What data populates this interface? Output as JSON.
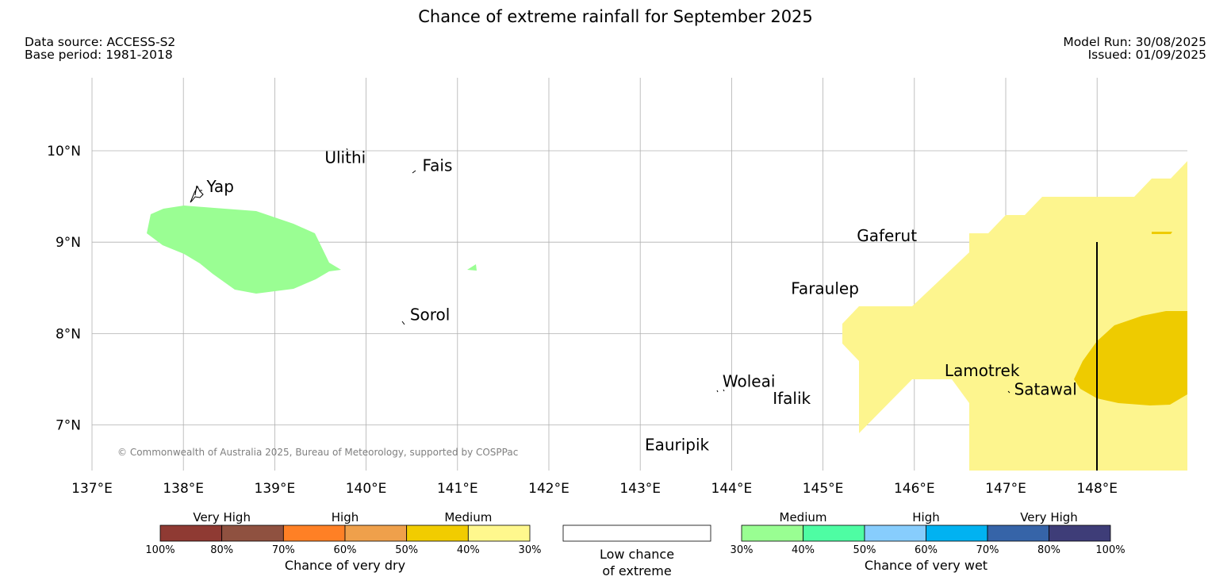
{
  "title": "Chance of extreme rainfall for September 2025",
  "data_source": "Data source: ACCESS-S2",
  "base_period": "Base period: 1981-2018",
  "model_run": "Model Run: 30/08/2025",
  "issued": "Issued: 01/09/2025",
  "copyright": "© Commonwealth of Australia 2025, Bureau of Meteorology, supported by COSPPac",
  "map": {
    "lon_ticks": [
      {
        "value": 137,
        "label": "137°E"
      },
      {
        "value": 138,
        "label": "138°E"
      },
      {
        "value": 139,
        "label": "139°E"
      },
      {
        "value": 140,
        "label": "140°E"
      },
      {
        "value": 141,
        "label": "141°E"
      },
      {
        "value": 142,
        "label": "142°E"
      },
      {
        "value": 143,
        "label": "143°E"
      },
      {
        "value": 144,
        "label": "144°E"
      },
      {
        "value": 145,
        "label": "145°E"
      },
      {
        "value": 146,
        "label": "146°E"
      },
      {
        "value": 147,
        "label": "147°E"
      },
      {
        "value": 148,
        "label": "148°E"
      }
    ],
    "lat_ticks": [
      {
        "value": 10,
        "label": "10°N"
      },
      {
        "value": 9,
        "label": "9°N"
      },
      {
        "value": 8,
        "label": "8°N"
      },
      {
        "value": 7,
        "label": "7°N"
      }
    ],
    "places": [
      {
        "name": "Yap",
        "lon": 138.15,
        "lat": 9.53
      },
      {
        "name": "Ulithi",
        "lon": 139.72,
        "lat": 10.03
      },
      {
        "name": "Fais",
        "lon": 140.52,
        "lat": 9.77
      },
      {
        "name": "Sorol",
        "lon": 140.41,
        "lat": 8.13
      },
      {
        "name": "Gaferut",
        "lon": 145.37,
        "lat": 9.0
      },
      {
        "name": "Faraulep",
        "lon": 144.65,
        "lat": 8.4
      },
      {
        "name": "Woleai",
        "lon": 143.9,
        "lat": 7.35
      },
      {
        "name": "Ifalik",
        "lon": 144.45,
        "lat": 7.25
      },
      {
        "name": "Lamotrek",
        "lon": 146.33,
        "lat": 7.5
      },
      {
        "name": "Satawal",
        "lon": 147.04,
        "lat": 7.35
      },
      {
        "name": "Eauripik",
        "lon": 143.05,
        "lat": 6.68
      }
    ],
    "colors": {
      "dry_40": "#fdf58e",
      "dry_50": "#eecb00",
      "wet_30": "#9afe93"
    }
  },
  "legend": {
    "dry": {
      "levels": [
        "Very High",
        "High",
        "Medium"
      ],
      "ticks": [
        "100%",
        "80%",
        "70%",
        "60%",
        "50%",
        "40%",
        "30%"
      ],
      "colors": [
        "#8f3a33",
        "#8f5140",
        "#ff8025",
        "#efa04b",
        "#f1cc00",
        "#fff88d"
      ],
      "caption": "Chance of very dry"
    },
    "low": {
      "caption_line1": "Low chance",
      "caption_line2": "of extreme"
    },
    "wet": {
      "levels": [
        "Medium",
        "High",
        "Very High"
      ],
      "ticks": [
        "30%",
        "40%",
        "50%",
        "60%",
        "70%",
        "80%",
        "100%"
      ],
      "colors": [
        "#99fe92",
        "#4efda3",
        "#87cdfd",
        "#01b2f1",
        "#3664a8",
        "#3e3d78"
      ],
      "caption": "Chance of very wet"
    }
  }
}
